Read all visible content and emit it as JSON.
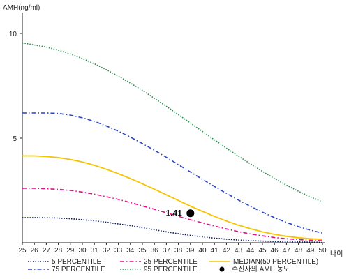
{
  "chart_data": {
    "type": "line",
    "ylabel": "AMH(ng/ml)",
    "xlabel": "나이",
    "ylim": [
      0,
      11
    ],
    "xlim": [
      25,
      50
    ],
    "y_ticks": [
      5,
      10
    ],
    "x": [
      25,
      26,
      27,
      28,
      29,
      30,
      31,
      32,
      33,
      34,
      35,
      36,
      37,
      38,
      39,
      40,
      41,
      42,
      43,
      44,
      45,
      46,
      47,
      48,
      49,
      50
    ],
    "series": [
      {
        "name": "5 PERCENTILE",
        "color": "#0a1560",
        "style": "dotted",
        "values": [
          1.2,
          1.2,
          1.2,
          1.18,
          1.15,
          1.1,
          1.05,
          0.98,
          0.9,
          0.82,
          0.72,
          0.62,
          0.52,
          0.43,
          0.35,
          0.28,
          0.22,
          0.17,
          0.13,
          0.1,
          0.08,
          0.06,
          0.05,
          0.04,
          0.03,
          0.02
        ]
      },
      {
        "name": "25 PERCENTILE",
        "color": "#e0108c",
        "style": "dashdot",
        "values": [
          2.6,
          2.6,
          2.58,
          2.55,
          2.5,
          2.42,
          2.32,
          2.2,
          2.07,
          1.92,
          1.76,
          1.6,
          1.43,
          1.26,
          1.1,
          0.95,
          0.8,
          0.66,
          0.53,
          0.42,
          0.33,
          0.25,
          0.19,
          0.15,
          0.12,
          0.1
        ]
      },
      {
        "name": "MEDIAN(50 PERCENTILE)",
        "color": "#f5c400",
        "style": "solid",
        "values": [
          4.15,
          4.15,
          4.12,
          4.07,
          3.98,
          3.86,
          3.7,
          3.51,
          3.3,
          3.07,
          2.82,
          2.56,
          2.29,
          2.02,
          1.75,
          1.5,
          1.26,
          1.04,
          0.84,
          0.67,
          0.52,
          0.4,
          0.31,
          0.24,
          0.19,
          0.16
        ]
      },
      {
        "name": "75 PERCENTILE",
        "color": "#2a44c8",
        "style": "dashdot",
        "values": [
          6.2,
          6.2,
          6.2,
          6.18,
          6.1,
          5.97,
          5.8,
          5.58,
          5.33,
          5.05,
          4.74,
          4.42,
          4.08,
          3.73,
          3.38,
          3.03,
          2.69,
          2.36,
          2.04,
          1.74,
          1.46,
          1.2,
          0.97,
          0.77,
          0.6,
          0.46
        ]
      },
      {
        "name": "95 PERCENTILE",
        "color": "#2a8a50",
        "style": "dotted",
        "values": [
          9.55,
          9.45,
          9.35,
          9.2,
          9.02,
          8.8,
          8.55,
          8.27,
          7.96,
          7.63,
          7.28,
          6.9,
          6.52,
          6.12,
          5.72,
          5.32,
          4.92,
          4.52,
          4.14,
          3.77,
          3.41,
          3.07,
          2.75,
          2.46,
          2.19,
          1.95
        ]
      }
    ],
    "marker": {
      "name": "수진자의 AMH 농도",
      "x": 39,
      "y": 1.41,
      "label": "1.41",
      "color": "#000000"
    },
    "legend_position": "bottom",
    "grid": false
  }
}
